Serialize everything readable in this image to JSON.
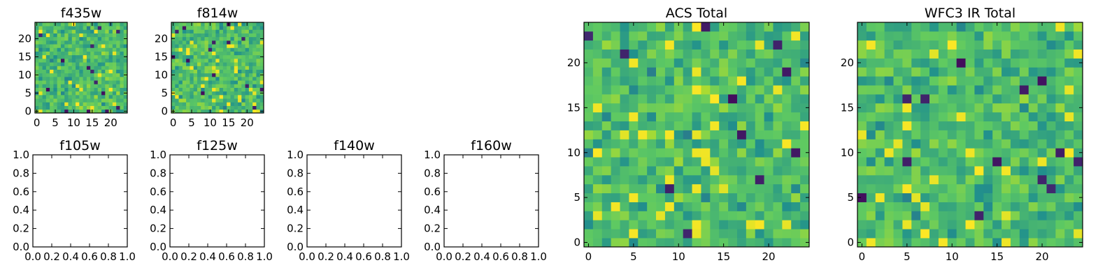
{
  "chart_data": [
    {
      "type": "heatmap",
      "title": "f435w",
      "xlim": [
        -0.5,
        24.5
      ],
      "ylim": [
        -0.5,
        24.5
      ],
      "xticks": [
        0,
        5,
        10,
        15,
        20
      ],
      "yticks": [
        0,
        5,
        10,
        15,
        20
      ],
      "grid_size": 25,
      "values": [],
      "colormap": "viridis"
    },
    {
      "type": "heatmap",
      "title": "f814w",
      "xlim": [
        -0.5,
        24.5
      ],
      "ylim": [
        -0.5,
        24.5
      ],
      "xticks": [
        0,
        5,
        10,
        15,
        20
      ],
      "yticks": [
        0,
        5,
        10,
        15,
        20
      ],
      "grid_size": 25,
      "values": [],
      "colormap": "viridis"
    },
    {
      "type": "heatmap",
      "title": "f105w",
      "xlim": [
        0,
        1
      ],
      "ylim": [
        0,
        1
      ],
      "xticks": [
        0.0,
        0.2,
        0.4,
        0.6,
        0.8,
        1.0
      ],
      "yticks": [
        0.0,
        0.2,
        0.4,
        0.6,
        0.8,
        1.0
      ],
      "empty": true
    },
    {
      "type": "heatmap",
      "title": "f125w",
      "xlim": [
        0,
        1
      ],
      "ylim": [
        0,
        1
      ],
      "xticks": [
        0.0,
        0.2,
        0.4,
        0.6,
        0.8,
        1.0
      ],
      "yticks": [
        0.0,
        0.2,
        0.4,
        0.6,
        0.8,
        1.0
      ],
      "empty": true
    },
    {
      "type": "heatmap",
      "title": "f140w",
      "xlim": [
        0,
        1
      ],
      "ylim": [
        0,
        1
      ],
      "xticks": [
        0.0,
        0.2,
        0.4,
        0.6,
        0.8,
        1.0
      ],
      "yticks": [
        0.0,
        0.2,
        0.4,
        0.6,
        0.8,
        1.0
      ],
      "empty": true
    },
    {
      "type": "heatmap",
      "title": "f160w",
      "xlim": [
        0,
        1
      ],
      "ylim": [
        0,
        1
      ],
      "xticks": [
        0.0,
        0.2,
        0.4,
        0.6,
        0.8,
        1.0
      ],
      "yticks": [
        0.0,
        0.2,
        0.4,
        0.6,
        0.8,
        1.0
      ],
      "empty": true
    },
    {
      "type": "heatmap",
      "title": "ACS Total",
      "xlim": [
        -0.5,
        24.5
      ],
      "ylim": [
        -0.5,
        24.5
      ],
      "xticks": [
        0,
        5,
        10,
        15,
        20
      ],
      "yticks": [
        0,
        5,
        10,
        15,
        20
      ],
      "grid_size": 25,
      "values": [],
      "colormap": "viridis"
    },
    {
      "type": "heatmap",
      "title": "WFC3 IR Total",
      "xlim": [
        -0.5,
        24.5
      ],
      "ylim": [
        -0.5,
        24.5
      ],
      "xticks": [
        0,
        5,
        10,
        15,
        20
      ],
      "yticks": [
        0,
        5,
        10,
        15,
        20
      ],
      "grid_size": 25,
      "values": [],
      "colormap": "viridis"
    }
  ],
  "colors": {
    "frame": "#000000",
    "background": "#ffffff",
    "viridis": [
      "#440154",
      "#3b528b",
      "#21918c",
      "#5ec962",
      "#b5de2b",
      "#fde725"
    ]
  }
}
